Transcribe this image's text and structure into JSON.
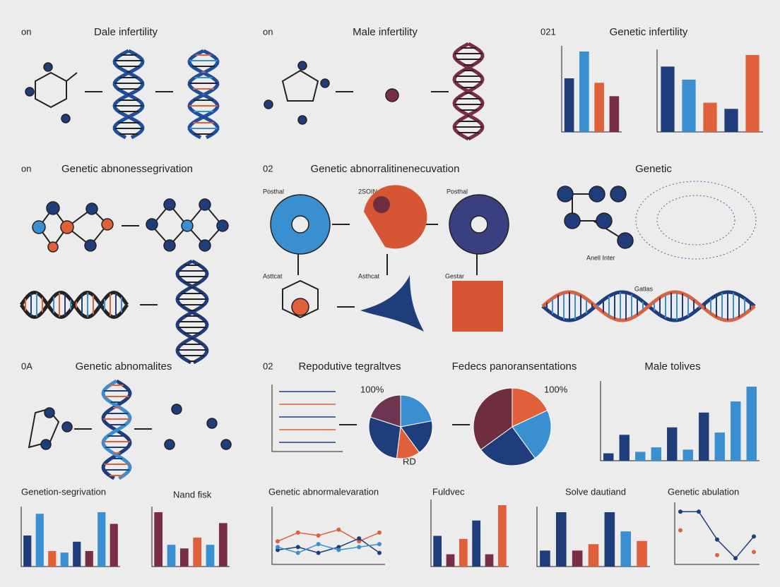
{
  "labels": {
    "p1": {
      "num": "on",
      "title": "Dale infertility"
    },
    "p2": {
      "num": "on",
      "title": "Male infertility"
    },
    "p3": {
      "num": "021",
      "title": "Genetic infertility"
    },
    "p4": {
      "num": "on",
      "title": "Genetic abnonessegrivation"
    },
    "p5": {
      "num": "02",
      "title": "Genetic abnorralitinenecuvation",
      "tags": [
        "Posthal",
        "2SOIN",
        "Posthal",
        "Asttcat",
        "Asthcat",
        "Gestar"
      ]
    },
    "p6": {
      "title": "Genetic",
      "tags": [
        "Anell Inter",
        "Gatlas"
      ]
    },
    "p7": {
      "num": "0A",
      "title": "Genetic abnomalites"
    },
    "p8": {
      "num": "02",
      "title": "Repodutive tegraltves",
      "tags": [
        "100%",
        "RD"
      ]
    },
    "p9": {
      "title": "Fedecs panoransentations",
      "tags": [
        "100%"
      ]
    },
    "p10": {
      "title": "Male tolives"
    },
    "p11": {
      "title": "Genetion-segrivation"
    },
    "p12": {
      "title": "Nand fisk"
    },
    "p13": {
      "title": "Genetic abnormalevaration"
    },
    "p14": {
      "title": "Fuldvec"
    },
    "p15": {
      "title": "Solve dautiand"
    },
    "p16": {
      "title": "Genetic abulation"
    }
  },
  "chart_data": [
    {
      "type": "bar",
      "values": [
        60,
        90,
        55,
        40
      ],
      "colors": [
        "#1f3d7a",
        "#3a8fd0",
        "#e0603a",
        "#7a2e45"
      ]
    },
    {
      "type": "bar",
      "values": [
        85,
        68,
        38,
        30,
        100
      ],
      "colors": [
        "#1f3d7a",
        "#3a8fd0",
        "#e0603a",
        "#1f3d7a",
        "#e0603a"
      ]
    },
    {
      "type": "pie",
      "values": [
        22,
        18,
        12,
        28,
        20
      ],
      "colors": [
        "#3a8fd0",
        "#1f3d7a",
        "#e0603a",
        "#1f3d7a",
        "#6e3550"
      ]
    },
    {
      "type": "pie",
      "values": [
        18,
        22,
        25,
        35
      ],
      "colors": [
        "#e0603a",
        "#3a8fd0",
        "#1f3d7a",
        "#6e2e3e"
      ]
    },
    {
      "type": "bar",
      "values": [
        10,
        35,
        12,
        18,
        45,
        15,
        65,
        38,
        80,
        100
      ],
      "colors": [
        "#1f3d7a",
        "#1f3d7a",
        "#3a8fd0",
        "#3a8fd0",
        "#1f3d7a",
        "#3a8fd0",
        "#1f3d7a",
        "#3a8fd0",
        "#3a8fd0",
        "#3a8fd0"
      ]
    },
    {
      "type": "bar",
      "values": [
        40,
        68,
        20,
        18,
        32,
        20,
        70,
        55
      ],
      "colors": [
        "#1f3d7a",
        "#3a8fd0",
        "#e0603a",
        "#3a8fd0",
        "#1f3d7a",
        "#7a2e45",
        "#3a8fd0",
        "#7a2e45"
      ]
    },
    {
      "type": "bar",
      "values": [
        75,
        30,
        25,
        40,
        30,
        60
      ],
      "colors": [
        "#7a2e45",
        "#3a8fd0",
        "#7a2e45",
        "#e0603a",
        "#3a8fd0",
        "#7a2e45"
      ]
    },
    {
      "type": "line",
      "series": [
        {
          "color": "#e0603a",
          "values": [
            40,
            55,
            50,
            60,
            40,
            55
          ]
        },
        {
          "color": "#1f3d7a",
          "values": [
            25,
            30,
            20,
            30,
            45,
            20
          ]
        },
        {
          "color": "#3a8fd0",
          "values": [
            30,
            20,
            35,
            25,
            30,
            35
          ]
        }
      ]
    },
    {
      "type": "bar",
      "values": [
        50,
        20,
        45,
        75,
        20,
        100
      ],
      "colors": [
        "#1f3d7a",
        "#7a2e45",
        "#e0603a",
        "#1f3d7a",
        "#7a2e45",
        "#e0603a"
      ]
    },
    {
      "type": "bar",
      "values": [
        25,
        85,
        25,
        35,
        85,
        55,
        40
      ],
      "colors": [
        "#1f3d7a",
        "#1f3d7a",
        "#7a2e45",
        "#e0603a",
        "#1f3d7a",
        "#3a8fd0",
        "#e0603a"
      ]
    },
    {
      "type": "line",
      "series": [
        {
          "color": "#1f3d7a",
          "values": [
            85,
            85,
            40,
            10,
            45
          ]
        },
        {
          "color": "#e0603a",
          "values": [
            55,
            null,
            15,
            null,
            20
          ]
        }
      ]
    }
  ]
}
